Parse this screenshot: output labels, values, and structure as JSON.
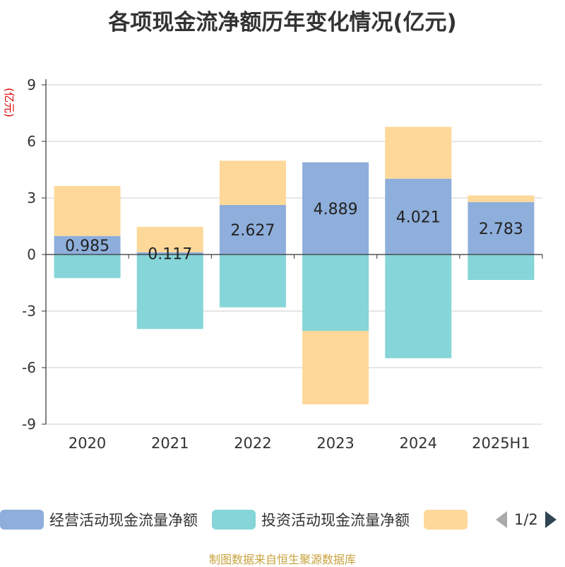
{
  "title": "各项现金流净额历年变化情况(亿元)",
  "source": "制图数据来自恒生聚源数据库",
  "legend_pager": {
    "page_text": "1/2"
  },
  "colors": {
    "operating": "#8eaedb",
    "investing": "#86d5d8",
    "financing": "#fdd899",
    "grid": "#cccccc",
    "axis": "#333333",
    "ylabel": "#dd0000"
  },
  "chart_data": {
    "type": "bar",
    "stacked": true,
    "title": "各项现金流净额历年变化情况(亿元)",
    "ylabel": "(亿元)",
    "xlabel": "",
    "categories": [
      "2020",
      "2021",
      "2022",
      "2023",
      "2024",
      "2025H1"
    ],
    "ylim": [
      -9,
      9
    ],
    "yticks": [
      "9",
      "6",
      "3",
      "0",
      "-3",
      "-6",
      "-9"
    ],
    "grid": true,
    "legend_position": "bottom",
    "series": [
      {
        "name": "经营活动现金流量净额",
        "values": [
          0.985,
          0.117,
          2.627,
          4.889,
          4.021,
          2.783
        ],
        "labels": [
          "0.985",
          "0.117",
          "2.627",
          "4.889",
          "4.021",
          "2.783"
        ]
      },
      {
        "name": "投资活动现金流量净额",
        "values": [
          -1.25,
          -3.95,
          -2.8,
          -4.05,
          -5.5,
          -1.35
        ]
      },
      {
        "name": "",
        "values": [
          2.65,
          1.35,
          2.35,
          -3.9,
          2.75,
          0.35
        ]
      }
    ]
  }
}
